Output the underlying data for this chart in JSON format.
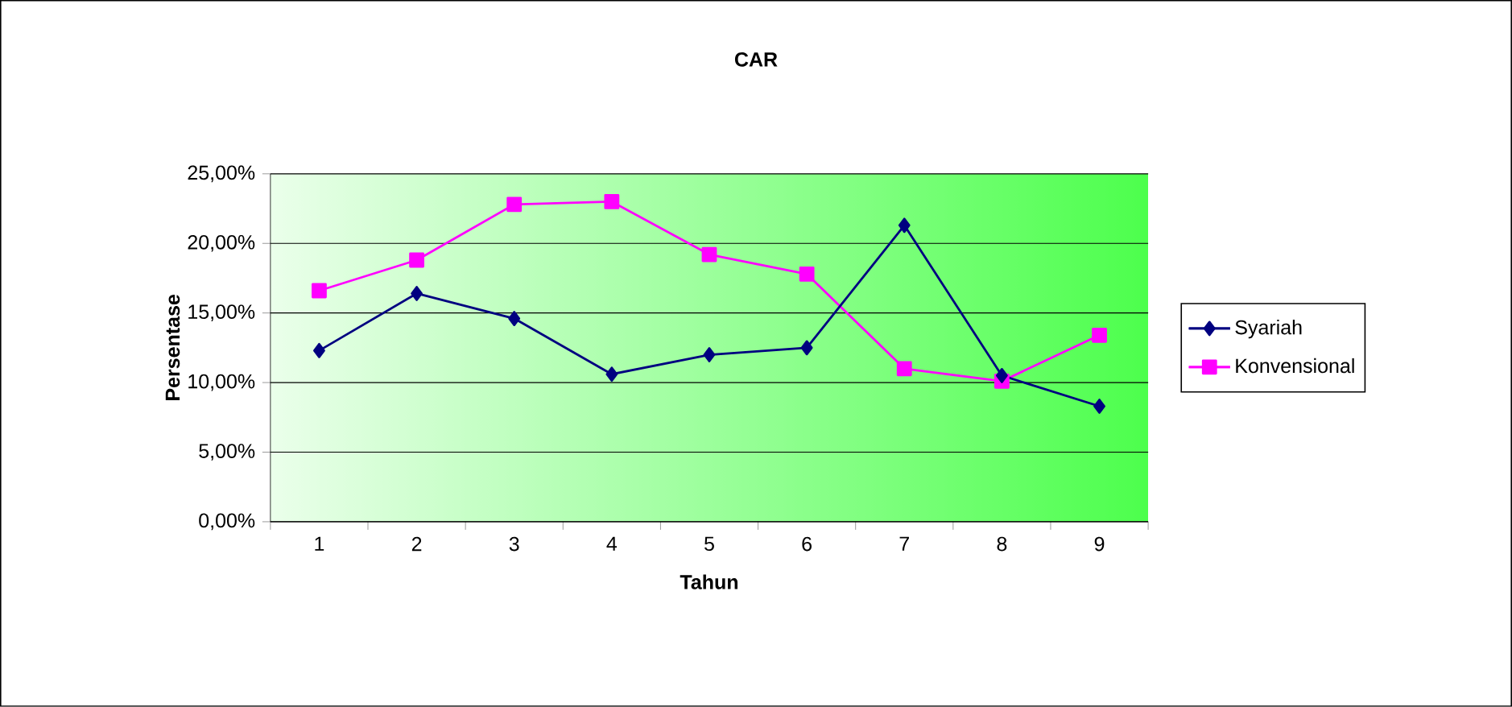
{
  "chart_data": {
    "type": "line",
    "title": "CAR",
    "xlabel": "Tahun",
    "ylabel": "Persentase",
    "categories": [
      "1",
      "2",
      "3",
      "4",
      "5",
      "6",
      "7",
      "8",
      "9"
    ],
    "series": [
      {
        "name": "Syariah",
        "color": "#000080",
        "marker": "diamond",
        "values": [
          12.3,
          16.4,
          14.6,
          10.6,
          12.0,
          12.5,
          21.3,
          10.5,
          8.3
        ]
      },
      {
        "name": "Konvensional",
        "color": "#ff00ff",
        "marker": "square",
        "values": [
          16.6,
          18.8,
          22.8,
          23.0,
          19.2,
          17.8,
          11.0,
          10.1,
          13.4
        ]
      }
    ],
    "ylim": [
      0,
      25
    ],
    "yticks": [
      {
        "value": 0,
        "label": "0,00%"
      },
      {
        "value": 5,
        "label": "5,00%"
      },
      {
        "value": 10,
        "label": "10,00%"
      },
      {
        "value": 15,
        "label": "15,00%"
      },
      {
        "value": 20,
        "label": "20,00%"
      },
      {
        "value": 25,
        "label": "25,00%"
      }
    ],
    "grid": "y",
    "legend": "right",
    "line_style": "solid"
  }
}
